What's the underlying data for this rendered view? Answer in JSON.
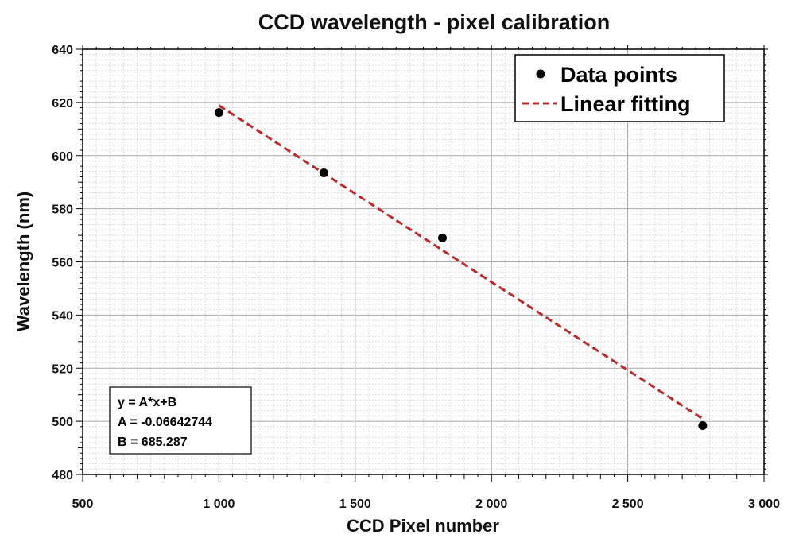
{
  "chart_data": {
    "type": "scatter",
    "title": "CCD wavelength - pixel calibration",
    "xlabel": "CCD Pixel number",
    "ylabel": "Wavelength (nm)",
    "xlim": [
      500,
      3000
    ],
    "ylim": [
      480,
      640
    ],
    "x_ticks": [
      500,
      1000,
      1500,
      2000,
      2500,
      3000
    ],
    "x_tick_labels": [
      "500",
      "1 000",
      "1 500",
      "2 000",
      "2 500",
      "3 000"
    ],
    "y_ticks": [
      480,
      500,
      520,
      540,
      560,
      580,
      600,
      620,
      640
    ],
    "y_tick_labels": [
      "480",
      "500",
      "520",
      "540",
      "560",
      "580",
      "600",
      "620",
      "640"
    ],
    "grid": true,
    "legend_position": "top-right",
    "series": [
      {
        "name": "Data points",
        "kind": "scatter",
        "color": "#000000",
        "x": [
          1000,
          1385,
          1820,
          2775
        ],
        "y": [
          616.2,
          593.5,
          569.0,
          498.4
        ]
      },
      {
        "name": "Linear fitting",
        "kind": "line",
        "style": "dashed",
        "color": "#c0282c",
        "x": [
          1000,
          2775
        ],
        "y": [
          618.86,
          500.96
        ]
      }
    ],
    "annotation": {
      "position": "bottom-left",
      "lines": [
        "y = A*x+B",
        "A = -0.06642744",
        "B = 685.287"
      ]
    }
  }
}
